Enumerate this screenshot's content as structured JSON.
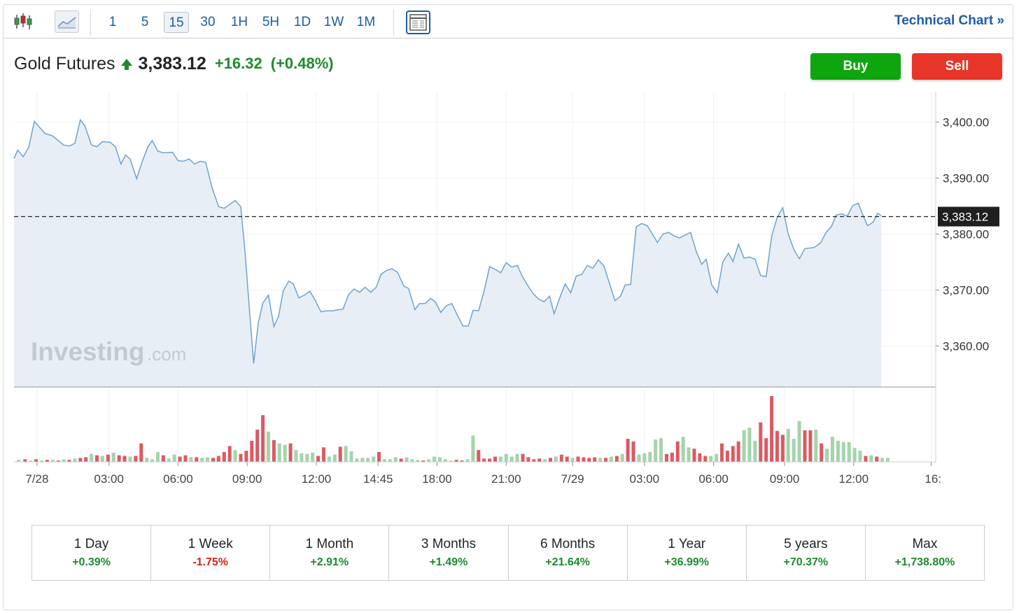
{
  "toolbar": {
    "timeframes": [
      "1",
      "5",
      "15",
      "30",
      "1H",
      "5H",
      "1D",
      "1W",
      "1M"
    ],
    "active_timeframe": "15",
    "technical_chart_label": "Technical Chart »"
  },
  "quote": {
    "name": "Gold Futures",
    "price": "3,383.12",
    "change": "+16.32",
    "change_pct": "(+0.48%)",
    "direction": "up"
  },
  "actions": {
    "buy_label": "Buy",
    "sell_label": "Sell"
  },
  "watermark": {
    "main": "Investing",
    "suffix": ".com"
  },
  "colors": {
    "line": "#6ea3cf",
    "area": "#e8eef6",
    "up": "#a4d4ab",
    "down": "#db5a63",
    "positive": "#1e8a2e",
    "negative": "#d0241b",
    "accent": "#1e5ba8"
  },
  "chart_data": {
    "type": "area",
    "y_ticks": [
      "3,400.00",
      "3,390.00",
      "3,380.00",
      "3,370.00",
      "3,360.00"
    ],
    "y_tick_values": [
      3400,
      3390,
      3380,
      3370,
      3360
    ],
    "ylim": [
      3352.7,
      3405.3
    ],
    "current_price_label": "3,383.12",
    "current_price": 3383.12,
    "x_ticks": [
      "7/28",
      "03:00",
      "06:00",
      "09:00",
      "12:00",
      "14:45",
      "18:00",
      "21:00",
      "7/29",
      "03:00",
      "06:00",
      "09:00",
      "12:00",
      "16:"
    ],
    "x_tick_pos": [
      0.025,
      0.103,
      0.178,
      0.253,
      0.328,
      0.395,
      0.459,
      0.534,
      0.606,
      0.684,
      0.759,
      0.836,
      0.911,
      0.995
    ],
    "grid": true,
    "price_series": [
      [
        0.0,
        3393.5
      ],
      [
        0.004,
        3395.0
      ],
      [
        0.01,
        3393.8
      ],
      [
        0.016,
        3395.5
      ],
      [
        0.022,
        3400.1
      ],
      [
        0.034,
        3397.9
      ],
      [
        0.041,
        3397.6
      ],
      [
        0.054,
        3395.9
      ],
      [
        0.06,
        3395.7
      ],
      [
        0.066,
        3396.2
      ],
      [
        0.072,
        3400.4
      ],
      [
        0.077,
        3399.3
      ],
      [
        0.084,
        3395.9
      ],
      [
        0.09,
        3395.6
      ],
      [
        0.096,
        3396.5
      ],
      [
        0.104,
        3396.4
      ],
      [
        0.11,
        3395.6
      ],
      [
        0.116,
        3392.5
      ],
      [
        0.121,
        3394.1
      ],
      [
        0.126,
        3393.4
      ],
      [
        0.133,
        3389.9
      ],
      [
        0.139,
        3392.9
      ],
      [
        0.145,
        3395.5
      ],
      [
        0.15,
        3396.7
      ],
      [
        0.156,
        3394.8
      ],
      [
        0.162,
        3394.5
      ],
      [
        0.172,
        3394.6
      ],
      [
        0.178,
        3393.1
      ],
      [
        0.184,
        3393.0
      ],
      [
        0.19,
        3393.4
      ],
      [
        0.196,
        3392.5
      ],
      [
        0.202,
        3393.0
      ],
      [
        0.208,
        3392.8
      ],
      [
        0.215,
        3388.2
      ],
      [
        0.222,
        3384.9
      ],
      [
        0.228,
        3384.6
      ],
      [
        0.234,
        3385.3
      ],
      [
        0.24,
        3386.0
      ],
      [
        0.246,
        3384.9
      ],
      [
        0.25,
        3378.0
      ],
      [
        0.26,
        3356.9
      ],
      [
        0.265,
        3364.1
      ],
      [
        0.27,
        3367.7
      ],
      [
        0.276,
        3369.1
      ],
      [
        0.282,
        3363.5
      ],
      [
        0.287,
        3365.3
      ],
      [
        0.292,
        3369.8
      ],
      [
        0.298,
        3371.6
      ],
      [
        0.303,
        3371.1
      ],
      [
        0.309,
        3368.6
      ],
      [
        0.315,
        3369.1
      ],
      [
        0.321,
        3369.8
      ],
      [
        0.327,
        3368.1
      ],
      [
        0.333,
        3366.1
      ],
      [
        0.339,
        3366.3
      ],
      [
        0.346,
        3366.3
      ],
      [
        0.352,
        3366.5
      ],
      [
        0.357,
        3366.6
      ],
      [
        0.363,
        3369.2
      ],
      [
        0.369,
        3370.2
      ],
      [
        0.375,
        3369.6
      ],
      [
        0.381,
        3370.5
      ],
      [
        0.387,
        3369.6
      ],
      [
        0.393,
        3370.5
      ],
      [
        0.398,
        3372.8
      ],
      [
        0.404,
        3373.5
      ],
      [
        0.41,
        3373.8
      ],
      [
        0.416,
        3373.2
      ],
      [
        0.423,
        3370.7
      ],
      [
        0.428,
        3370.3
      ],
      [
        0.435,
        3366.5
      ],
      [
        0.44,
        3367.6
      ],
      [
        0.446,
        3367.6
      ],
      [
        0.452,
        3368.5
      ],
      [
        0.457,
        3367.9
      ],
      [
        0.463,
        3366.0
      ],
      [
        0.469,
        3367.2
      ],
      [
        0.475,
        3367.6
      ],
      [
        0.481,
        3365.5
      ],
      [
        0.487,
        3363.6
      ],
      [
        0.493,
        3363.6
      ],
      [
        0.498,
        3366.4
      ],
      [
        0.504,
        3366.3
      ],
      [
        0.51,
        3369.8
      ],
      [
        0.516,
        3374.2
      ],
      [
        0.522,
        3373.7
      ],
      [
        0.528,
        3373.1
      ],
      [
        0.534,
        3374.9
      ],
      [
        0.54,
        3374.1
      ],
      [
        0.546,
        3374.4
      ],
      [
        0.551,
        3372.6
      ],
      [
        0.557,
        3370.9
      ],
      [
        0.563,
        3369.4
      ],
      [
        0.569,
        3368.4
      ],
      [
        0.575,
        3367.9
      ],
      [
        0.581,
        3368.9
      ],
      [
        0.586,
        3365.8
      ],
      [
        0.592,
        3368.6
      ],
      [
        0.598,
        3371.1
      ],
      [
        0.604,
        3369.5
      ],
      [
        0.61,
        3372.5
      ],
      [
        0.616,
        3372.8
      ],
      [
        0.622,
        3374.4
      ],
      [
        0.628,
        3373.9
      ],
      [
        0.634,
        3375.4
      ],
      [
        0.64,
        3374.3
      ],
      [
        0.646,
        3371.2
      ],
      [
        0.652,
        3368.1
      ],
      [
        0.658,
        3368.9
      ],
      [
        0.663,
        3370.9
      ],
      [
        0.669,
        3371.0
      ],
      [
        0.675,
        3381.3
      ],
      [
        0.681,
        3381.9
      ],
      [
        0.687,
        3381.5
      ],
      [
        0.693,
        3379.9
      ],
      [
        0.698,
        3378.5
      ],
      [
        0.704,
        3380.0
      ],
      [
        0.71,
        3380.3
      ],
      [
        0.716,
        3379.7
      ],
      [
        0.722,
        3379.3
      ],
      [
        0.728,
        3379.8
      ],
      [
        0.734,
        3380.3
      ],
      [
        0.74,
        3377.0
      ],
      [
        0.746,
        3374.6
      ],
      [
        0.751,
        3375.5
      ],
      [
        0.757,
        3370.9
      ],
      [
        0.763,
        3369.5
      ],
      [
        0.769,
        3375.0
      ],
      [
        0.775,
        3376.6
      ],
      [
        0.78,
        3375.1
      ],
      [
        0.786,
        3378.2
      ],
      [
        0.792,
        3375.7
      ],
      [
        0.798,
        3375.9
      ],
      [
        0.804,
        3375.5
      ],
      [
        0.81,
        3372.6
      ],
      [
        0.816,
        3372.4
      ],
      [
        0.822,
        3379.6
      ],
      [
        0.828,
        3383.0
      ],
      [
        0.834,
        3384.7
      ],
      [
        0.84,
        3380.0
      ],
      [
        0.846,
        3377.3
      ],
      [
        0.852,
        3375.6
      ],
      [
        0.858,
        3377.4
      ],
      [
        0.868,
        3377.6
      ],
      [
        0.875,
        3378.4
      ],
      [
        0.881,
        3380.3
      ],
      [
        0.887,
        3381.4
      ],
      [
        0.892,
        3383.4
      ],
      [
        0.898,
        3383.6
      ],
      [
        0.904,
        3383.2
      ],
      [
        0.91,
        3385.1
      ],
      [
        0.916,
        3385.5
      ],
      [
        0.92,
        3383.8
      ],
      [
        0.926,
        3381.5
      ],
      [
        0.932,
        3382.1
      ],
      [
        0.937,
        3383.7
      ],
      [
        0.941,
        3383.3
      ]
    ],
    "volume_scale_max": 1.0,
    "volume_series": [
      [
        0.005,
        0.03,
        "up"
      ],
      [
        0.012,
        0.04,
        "down"
      ],
      [
        0.018,
        0.02,
        "up"
      ],
      [
        0.024,
        0.04,
        "down"
      ],
      [
        0.03,
        0.02,
        "up"
      ],
      [
        0.036,
        0.03,
        "down"
      ],
      [
        0.042,
        0.03,
        "up"
      ],
      [
        0.048,
        0.02,
        "down"
      ],
      [
        0.054,
        0.04,
        "up"
      ],
      [
        0.06,
        0.03,
        "down"
      ],
      [
        0.066,
        0.05,
        "up"
      ],
      [
        0.072,
        0.06,
        "down"
      ],
      [
        0.078,
        0.07,
        "down"
      ],
      [
        0.084,
        0.12,
        "up"
      ],
      [
        0.09,
        0.1,
        "down"
      ],
      [
        0.096,
        0.09,
        "up"
      ],
      [
        0.102,
        0.11,
        "down"
      ],
      [
        0.108,
        0.14,
        "up"
      ],
      [
        0.114,
        0.1,
        "down"
      ],
      [
        0.12,
        0.09,
        "down"
      ],
      [
        0.126,
        0.08,
        "up"
      ],
      [
        0.132,
        0.09,
        "down"
      ],
      [
        0.138,
        0.28,
        "down"
      ],
      [
        0.144,
        0.06,
        "up"
      ],
      [
        0.15,
        0.04,
        "up"
      ],
      [
        0.156,
        0.15,
        "up"
      ],
      [
        0.162,
        0.1,
        "down"
      ],
      [
        0.168,
        0.05,
        "up"
      ],
      [
        0.174,
        0.11,
        "up"
      ],
      [
        0.18,
        0.08,
        "down"
      ],
      [
        0.186,
        0.1,
        "down"
      ],
      [
        0.192,
        0.07,
        "up"
      ],
      [
        0.198,
        0.07,
        "down"
      ],
      [
        0.204,
        0.06,
        "up"
      ],
      [
        0.21,
        0.07,
        "up"
      ],
      [
        0.216,
        0.06,
        "down"
      ],
      [
        0.222,
        0.09,
        "down"
      ],
      [
        0.228,
        0.15,
        "down"
      ],
      [
        0.234,
        0.24,
        "down"
      ],
      [
        0.24,
        0.18,
        "up"
      ],
      [
        0.246,
        0.12,
        "down"
      ],
      [
        0.252,
        0.17,
        "down"
      ],
      [
        0.258,
        0.32,
        "down"
      ],
      [
        0.264,
        0.49,
        "down"
      ],
      [
        0.27,
        0.71,
        "down"
      ],
      [
        0.276,
        0.46,
        "up"
      ],
      [
        0.282,
        0.33,
        "down"
      ],
      [
        0.288,
        0.28,
        "up"
      ],
      [
        0.294,
        0.26,
        "up"
      ],
      [
        0.3,
        0.28,
        "down"
      ],
      [
        0.306,
        0.18,
        "up"
      ],
      [
        0.312,
        0.13,
        "up"
      ],
      [
        0.318,
        0.12,
        "up"
      ],
      [
        0.324,
        0.14,
        "up"
      ],
      [
        0.33,
        0.09,
        "down"
      ],
      [
        0.336,
        0.22,
        "down"
      ],
      [
        0.342,
        0.08,
        "up"
      ],
      [
        0.348,
        0.11,
        "up"
      ],
      [
        0.354,
        0.23,
        "down"
      ],
      [
        0.36,
        0.24,
        "up"
      ],
      [
        0.366,
        0.16,
        "up"
      ],
      [
        0.372,
        0.05,
        "up"
      ],
      [
        0.378,
        0.06,
        "up"
      ],
      [
        0.384,
        0.06,
        "up"
      ],
      [
        0.39,
        0.08,
        "up"
      ],
      [
        0.396,
        0.15,
        "down"
      ],
      [
        0.402,
        0.04,
        "up"
      ],
      [
        0.408,
        0.04,
        "up"
      ],
      [
        0.414,
        0.07,
        "up"
      ],
      [
        0.42,
        0.05,
        "down"
      ],
      [
        0.426,
        0.07,
        "up"
      ],
      [
        0.432,
        0.04,
        "up"
      ],
      [
        0.438,
        0.03,
        "up"
      ],
      [
        0.444,
        0.02,
        "down"
      ],
      [
        0.45,
        0.04,
        "up"
      ],
      [
        0.456,
        0.08,
        "up"
      ],
      [
        0.462,
        0.07,
        "up"
      ],
      [
        0.468,
        0.04,
        "up"
      ],
      [
        0.474,
        0.02,
        "up"
      ],
      [
        0.48,
        0.03,
        "down"
      ],
      [
        0.486,
        0.02,
        "down"
      ],
      [
        0.492,
        0.04,
        "up"
      ],
      [
        0.498,
        0.4,
        "up"
      ],
      [
        0.504,
        0.18,
        "down"
      ],
      [
        0.51,
        0.05,
        "down"
      ],
      [
        0.516,
        0.05,
        "down"
      ],
      [
        0.522,
        0.08,
        "down"
      ],
      [
        0.528,
        0.08,
        "up"
      ],
      [
        0.534,
        0.12,
        "up"
      ],
      [
        0.54,
        0.08,
        "up"
      ],
      [
        0.546,
        0.12,
        "up"
      ],
      [
        0.552,
        0.12,
        "down"
      ],
      [
        0.558,
        0.07,
        "down"
      ],
      [
        0.564,
        0.04,
        "down"
      ],
      [
        0.57,
        0.05,
        "down"
      ],
      [
        0.576,
        0.04,
        "up"
      ],
      [
        0.582,
        0.06,
        "down"
      ],
      [
        0.588,
        0.08,
        "up"
      ],
      [
        0.594,
        0.11,
        "down"
      ],
      [
        0.6,
        0.08,
        "down"
      ],
      [
        0.606,
        0.06,
        "up"
      ],
      [
        0.612,
        0.08,
        "down"
      ],
      [
        0.618,
        0.07,
        "down"
      ],
      [
        0.624,
        0.06,
        "down"
      ],
      [
        0.63,
        0.07,
        "down"
      ],
      [
        0.636,
        0.06,
        "up"
      ],
      [
        0.642,
        0.06,
        "down"
      ],
      [
        0.648,
        0.08,
        "up"
      ],
      [
        0.654,
        0.09,
        "down"
      ],
      [
        0.66,
        0.12,
        "up"
      ],
      [
        0.666,
        0.35,
        "down"
      ],
      [
        0.672,
        0.31,
        "down"
      ],
      [
        0.678,
        0.11,
        "up"
      ],
      [
        0.684,
        0.13,
        "up"
      ],
      [
        0.69,
        0.15,
        "up"
      ],
      [
        0.696,
        0.34,
        "up"
      ],
      [
        0.702,
        0.36,
        "up"
      ],
      [
        0.708,
        0.12,
        "down"
      ],
      [
        0.714,
        0.14,
        "down"
      ],
      [
        0.72,
        0.31,
        "down"
      ],
      [
        0.726,
        0.38,
        "up"
      ],
      [
        0.732,
        0.22,
        "up"
      ],
      [
        0.738,
        0.2,
        "down"
      ],
      [
        0.744,
        0.13,
        "down"
      ],
      [
        0.75,
        0.09,
        "down"
      ],
      [
        0.756,
        0.09,
        "up"
      ],
      [
        0.762,
        0.12,
        "up"
      ],
      [
        0.768,
        0.28,
        "down"
      ],
      [
        0.774,
        0.17,
        "down"
      ],
      [
        0.78,
        0.24,
        "down"
      ],
      [
        0.786,
        0.31,
        "down"
      ],
      [
        0.792,
        0.48,
        "up"
      ],
      [
        0.798,
        0.52,
        "up"
      ],
      [
        0.804,
        0.32,
        "up"
      ],
      [
        0.81,
        0.6,
        "down"
      ],
      [
        0.816,
        0.36,
        "down"
      ],
      [
        0.822,
        1.0,
        "down"
      ],
      [
        0.828,
        0.47,
        "down"
      ],
      [
        0.834,
        0.41,
        "down"
      ],
      [
        0.84,
        0.5,
        "up"
      ],
      [
        0.846,
        0.35,
        "up"
      ],
      [
        0.852,
        0.62,
        "up"
      ],
      [
        0.858,
        0.48,
        "down"
      ],
      [
        0.864,
        0.48,
        "down"
      ],
      [
        0.87,
        0.49,
        "up"
      ],
      [
        0.876,
        0.28,
        "down"
      ],
      [
        0.882,
        0.2,
        "up"
      ],
      [
        0.888,
        0.38,
        "up"
      ],
      [
        0.894,
        0.32,
        "up"
      ],
      [
        0.9,
        0.3,
        "up"
      ],
      [
        0.906,
        0.3,
        "up"
      ],
      [
        0.912,
        0.21,
        "up"
      ],
      [
        0.918,
        0.17,
        "up"
      ],
      [
        0.924,
        0.09,
        "down"
      ],
      [
        0.93,
        0.1,
        "up"
      ],
      [
        0.936,
        0.08,
        "down"
      ],
      [
        0.942,
        0.06,
        "up"
      ],
      [
        0.948,
        0.06,
        "up"
      ]
    ]
  },
  "periods": [
    {
      "label": "1 Day",
      "value": "+0.39%",
      "sign": "pos"
    },
    {
      "label": "1 Week",
      "value": "-1.75%",
      "sign": "neg"
    },
    {
      "label": "1 Month",
      "value": "+2.91%",
      "sign": "pos"
    },
    {
      "label": "3 Months",
      "value": "+1.49%",
      "sign": "pos"
    },
    {
      "label": "6 Months",
      "value": "+21.64%",
      "sign": "pos"
    },
    {
      "label": "1 Year",
      "value": "+36.99%",
      "sign": "pos"
    },
    {
      "label": "5 years",
      "value": "+70.37%",
      "sign": "pos"
    },
    {
      "label": "Max",
      "value": "+1,738.80%",
      "sign": "pos"
    }
  ]
}
